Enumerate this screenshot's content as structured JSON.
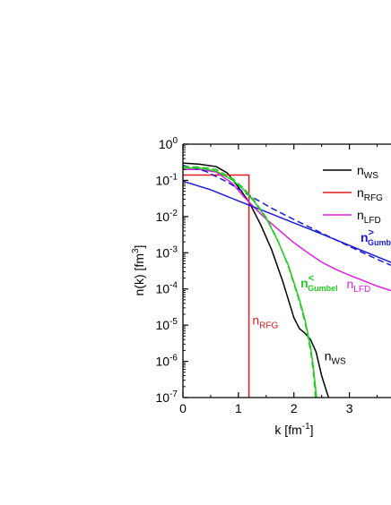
{
  "chart_data": {
    "type": "line",
    "xlabel": "k [fm",
    "xlabel_sup": "-1",
    "xlabel_end": "]",
    "ylabel": "n(k) [fm",
    "ylabel_sup": "3",
    "ylabel_end": "]",
    "xlim": [
      0,
      3.75
    ],
    "ylim_log10": [
      -7,
      0
    ],
    "y_scale": "log",
    "x_ticks": [
      {
        "value": 0,
        "label": "0"
      },
      {
        "value": 1,
        "label": "1"
      },
      {
        "value": 2,
        "label": "2"
      },
      {
        "value": 3,
        "label": "3"
      }
    ],
    "y_ticks": [
      {
        "exp": 0,
        "base": "10",
        "sup": "0"
      },
      {
        "exp": -1,
        "base": "10",
        "sup": "-1"
      },
      {
        "exp": -2,
        "base": "10",
        "sup": "-2"
      },
      {
        "exp": -3,
        "base": "10",
        "sup": "-3"
      },
      {
        "exp": -4,
        "base": "10",
        "sup": "-4"
      },
      {
        "exp": -5,
        "base": "10",
        "sup": "-5"
      },
      {
        "exp": -6,
        "base": "10",
        "sup": "-6"
      },
      {
        "exp": -7,
        "base": "10",
        "sup": "-7"
      }
    ],
    "grid": false,
    "legend_position": "top-right",
    "legend": [
      {
        "main": "n",
        "sub": "WS",
        "color": "#000000"
      },
      {
        "main": "n",
        "sub": "RFG",
        "color": "#e41a1c"
      },
      {
        "main": "n",
        "sub": "LFD",
        "color": "#e020e0"
      }
    ],
    "series": [
      {
        "key": "ws",
        "color": "#000000",
        "dash": "solid",
        "points": [
          [
            0,
            0.3
          ],
          [
            0.3,
            0.28
          ],
          [
            0.6,
            0.24
          ],
          [
            0.8,
            0.16
          ],
          [
            1.0,
            0.065
          ],
          [
            1.2,
            0.024
          ],
          [
            1.4,
            0.006
          ],
          [
            1.6,
            0.0012
          ],
          [
            1.8,
            0.00016
          ],
          [
            2.0,
            1.6e-05
          ],
          [
            2.1,
            8e-06
          ],
          [
            2.2,
            6e-06
          ],
          [
            2.3,
            4e-06
          ],
          [
            2.4,
            1.8e-06
          ],
          [
            2.5,
            4e-07
          ],
          [
            2.6,
            1.3e-07
          ],
          [
            2.65,
            8e-08
          ],
          [
            2.7,
            5e-08
          ]
        ]
      },
      {
        "key": "rfg",
        "color": "#e41a1c",
        "dash": "solid",
        "points": [
          [
            0,
            0.14
          ],
          [
            1.19,
            0.14
          ],
          [
            1.19,
            5e-08
          ]
        ]
      },
      {
        "key": "lfd",
        "color": "#e020e0",
        "dash": "solid",
        "points": [
          [
            0,
            0.2
          ],
          [
            0.3,
            0.2
          ],
          [
            0.6,
            0.17
          ],
          [
            0.9,
            0.08
          ],
          [
            1.1,
            0.035
          ],
          [
            1.3,
            0.017
          ],
          [
            1.5,
            0.0085
          ],
          [
            1.75,
            0.004
          ],
          [
            2.0,
            0.0019
          ],
          [
            2.25,
            0.001
          ],
          [
            2.5,
            0.00055
          ],
          [
            2.75,
            0.00035
          ],
          [
            3.0,
            0.00024
          ],
          [
            3.25,
            0.00017
          ],
          [
            3.5,
            0.00012
          ],
          [
            3.75,
            9e-05
          ]
        ]
      },
      {
        "key": "gumbel_gt",
        "color": "#1a1adb",
        "dash": "solid",
        "points": [
          [
            0,
            0.095
          ],
          [
            0.5,
            0.055
          ],
          [
            1.0,
            0.027
          ],
          [
            1.5,
            0.0135
          ],
          [
            2.0,
            0.0067
          ],
          [
            2.5,
            0.0033
          ],
          [
            3.0,
            0.0016
          ],
          [
            3.5,
            0.00078
          ],
          [
            3.75,
            0.00054
          ]
        ]
      },
      {
        "key": "gumbel_gt_dashed",
        "color": "#1a1adb",
        "dash": "dashed",
        "points": [
          [
            0,
            0.26
          ],
          [
            0.4,
            0.18
          ],
          [
            0.8,
            0.09
          ],
          [
            1.2,
            0.038
          ],
          [
            1.6,
            0.017
          ],
          [
            2.0,
            0.0083
          ],
          [
            2.5,
            0.0035
          ],
          [
            3.0,
            0.0015
          ],
          [
            3.5,
            0.00066
          ],
          [
            3.75,
            0.00045
          ]
        ]
      },
      {
        "key": "gumbel_lt",
        "color": "#22cc22",
        "dash": "solid",
        "points": [
          [
            0,
            0.22
          ],
          [
            0.3,
            0.22
          ],
          [
            0.6,
            0.18
          ],
          [
            0.9,
            0.1
          ],
          [
            1.1,
            0.055
          ],
          [
            1.3,
            0.024
          ],
          [
            1.5,
            0.009
          ],
          [
            1.7,
            0.0023
          ],
          [
            1.9,
            0.00045
          ],
          [
            2.1,
            5e-05
          ],
          [
            2.2,
            1.4e-05
          ],
          [
            2.3,
            2.5e-06
          ],
          [
            2.35,
            7e-07
          ],
          [
            2.4,
            1.3e-07
          ],
          [
            2.43,
            5e-08
          ]
        ]
      },
      {
        "key": "gumbel_lt_dashed",
        "color": "#22cc22",
        "dash": "dashed",
        "points": [
          [
            0,
            0.24
          ],
          [
            0.3,
            0.235
          ],
          [
            0.6,
            0.2
          ],
          [
            0.9,
            0.11
          ],
          [
            1.1,
            0.06
          ],
          [
            1.3,
            0.026
          ],
          [
            1.5,
            0.0095
          ],
          [
            1.7,
            0.0024
          ],
          [
            1.9,
            0.00042
          ],
          [
            2.1,
            4.5e-05
          ],
          [
            2.2,
            1.2e-05
          ],
          [
            2.3,
            2e-06
          ],
          [
            2.35,
            5e-07
          ],
          [
            2.38,
            1.5e-07
          ],
          [
            2.4,
            5e-08
          ]
        ]
      }
    ],
    "annotations": [
      {
        "key": "ann-gumbel-gt",
        "main": "n",
        "sup": ">",
        "sub": "Gumbel",
        "color": "#1a1adb",
        "bold": true,
        "x": 3.2,
        "y": 0.002
      },
      {
        "key": "ann-lfd",
        "main": "n",
        "sub": "LFD",
        "color": "#e020e0",
        "bold": false,
        "x": 2.95,
        "y": 0.000105
      },
      {
        "key": "ann-gumbel-lt",
        "main": "n",
        "sup": "<",
        "sub": "Gumbel",
        "color": "#22cc22",
        "bold": true,
        "x": 2.12,
        "y": 0.00011
      },
      {
        "key": "ann-rfg",
        "main": "n",
        "sub": "RFG",
        "color": "#e41a1c",
        "bold": false,
        "x": 1.25,
        "y": 1.05e-05
      },
      {
        "key": "ann-ws",
        "main": "n",
        "sub": "WS",
        "color": "#000000",
        "bold": false,
        "x": 2.55,
        "y": 1.05e-06
      }
    ]
  }
}
